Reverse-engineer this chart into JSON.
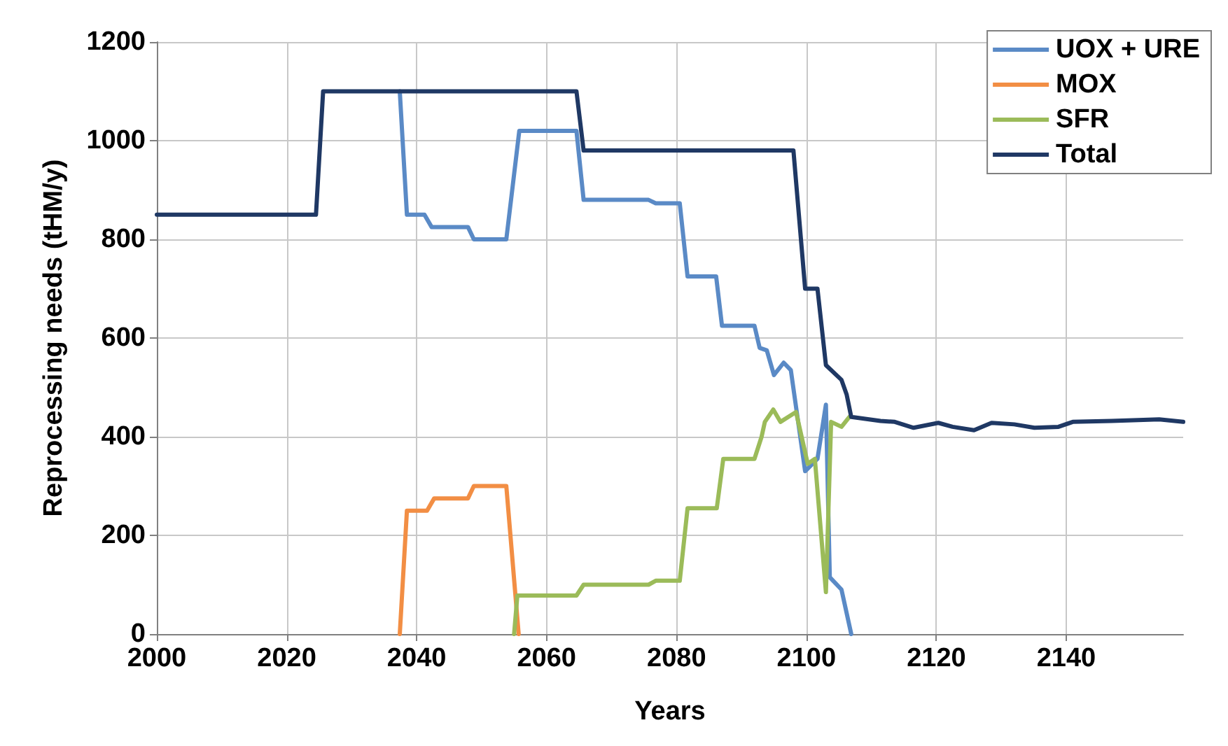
{
  "chart_data": {
    "type": "line",
    "xlabel": "Years",
    "ylabel": "Reprocessing needs (tHM/y)",
    "xlim": [
      2000,
      2158
    ],
    "xticks": [
      2000,
      2020,
      2040,
      2060,
      2080,
      2100,
      2120,
      2140
    ],
    "ylim": [
      0,
      1200
    ],
    "yticks": [
      0,
      200,
      400,
      600,
      800,
      1000,
      1200
    ],
    "grid": true,
    "legend": "top right",
    "marker": "none",
    "line_style": "solid",
    "series": [
      {
        "name": "UOX + URE",
        "color": "#5a8ac6",
        "x": [
          2037.4,
          2038.5,
          2041.2,
          2042.3,
          2047.9,
          2048.8,
          2053.8,
          2055.8,
          2064.6,
          2065.7,
          2075.7,
          2076.8,
          2080.5,
          2081.7,
          2086.1,
          2087,
          2092,
          2092.8,
          2093.9,
          2095,
          2096.5,
          2097.6,
          2099.8,
          2101.7,
          2103,
          2103.6,
          2105.4,
          2106.9
        ],
        "values": [
          1100,
          850,
          850,
          825,
          825,
          800,
          800,
          1020,
          1020,
          880,
          880,
          873,
          873,
          725,
          725,
          625,
          625,
          580,
          575,
          525,
          550,
          535,
          330,
          355,
          465,
          115,
          90,
          0
        ]
      },
      {
        "name": "MOX",
        "color": "#f28e44",
        "x": [
          2037.4,
          2038.5,
          2041.6,
          2042.7,
          2047.9,
          2048.8,
          2053.8,
          2055.7
        ],
        "values": [
          0,
          250,
          250,
          275,
          275,
          300,
          300,
          0
        ]
      },
      {
        "name": "SFR",
        "color": "#9bbb59",
        "x": [
          2055,
          2055.5,
          2064.6,
          2065.7,
          2075.7,
          2076.8,
          2080.5,
          2081.7,
          2086.2,
          2087.2,
          2092,
          2093.1,
          2093.6,
          2094.9,
          2096,
          2098.4,
          2100.2,
          2101.3,
          2103,
          2103.8,
          2105.4,
          2106.6
        ],
        "values": [
          0,
          78,
          78,
          100,
          100,
          108,
          108,
          255,
          255,
          355,
          355,
          400,
          430,
          455,
          430,
          450,
          345,
          355,
          85,
          430,
          420,
          440
        ]
      },
      {
        "name": "Total",
        "color": "#1f3864",
        "x": [
          2000,
          2024.5,
          2025.6,
          2064.6,
          2065.7,
          2098,
          2099.8,
          2101.7,
          2103,
          2105.4,
          2106.2,
          2106.9,
          2111.4,
          2113.6,
          2116.5,
          2120.3,
          2122.5,
          2125.8,
          2128.5,
          2132,
          2135.1,
          2138.8,
          2141,
          2147,
          2154.3,
          2158
        ],
        "values": [
          850,
          850,
          1100,
          1100,
          980,
          980,
          700,
          700,
          545,
          515,
          485,
          440,
          432,
          430,
          418,
          428,
          420,
          413,
          428,
          425,
          418,
          420,
          430,
          432,
          435,
          430
        ]
      }
    ]
  }
}
